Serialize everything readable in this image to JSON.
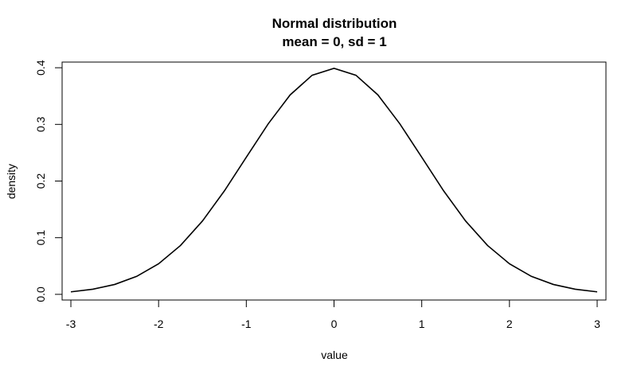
{
  "chart_data": {
    "type": "line",
    "title": "Normal distribution",
    "subtitle": "mean = 0, sd = 1",
    "xlabel": "value",
    "ylabel": "density",
    "xlim": [
      -3.1,
      3.1
    ],
    "ylim": [
      -0.01,
      0.41
    ],
    "xticks": [
      -3,
      -2,
      -1,
      0,
      1,
      2,
      3
    ],
    "yticks": [
      0.0,
      0.1,
      0.2,
      0.3,
      0.4
    ],
    "xtick_labels": [
      "-3",
      "-2",
      "-1",
      "0",
      "1",
      "2",
      "3"
    ],
    "ytick_labels": [
      "0.0",
      "0.1",
      "0.2",
      "0.3",
      "0.4"
    ],
    "grid": false,
    "legend": "none",
    "series": [
      {
        "color": "#000000",
        "x": [
          -3.0,
          -2.75,
          -2.5,
          -2.25,
          -2.0,
          -1.75,
          -1.5,
          -1.25,
          -1.0,
          -0.75,
          -0.5,
          -0.25,
          0.0,
          0.25,
          0.5,
          0.75,
          1.0,
          1.25,
          1.5,
          1.75,
          2.0,
          2.25,
          2.5,
          2.75,
          3.0
        ],
        "y": [
          0.0044,
          0.0091,
          0.0175,
          0.0317,
          0.054,
          0.0863,
          0.1295,
          0.1826,
          0.242,
          0.3011,
          0.3521,
          0.3867,
          0.3989,
          0.3867,
          0.3521,
          0.3011,
          0.242,
          0.1826,
          0.1295,
          0.0863,
          0.054,
          0.0317,
          0.0175,
          0.0091,
          0.0044
        ]
      }
    ]
  }
}
